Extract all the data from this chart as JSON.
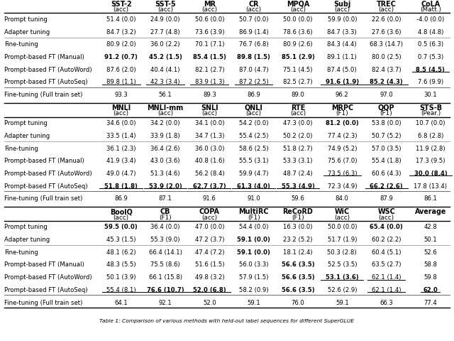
{
  "section1_header": [
    "SST-2\n(acc)",
    "SST-5\n(acc)",
    "MR\n(acc)",
    "CR\n(acc)",
    "MPQA\n(acc)",
    "Subj\n(acc)",
    "TREC\n(acc)",
    "CoLA\n(Matt.)"
  ],
  "section1_rows": [
    [
      "Prompt tuning",
      "51.4 (0.0)",
      "24.9 (0.0)",
      "50.6 (0.0)",
      "50.7 (0.0)",
      "50.0 (0.0)",
      "59.9 (0.0)",
      "22.6 (0.0)",
      "-4.0 (0.0)"
    ],
    [
      "Adapter tuning",
      "84.7 (3.2)",
      "27.7 (4.8)",
      "73.6 (3.9)",
      "86.9 (1.4)",
      "78.6 (3.6)",
      "84.7 (3.3)",
      "27.6 (3.6)",
      "4.8 (4.8)"
    ],
    [
      "Fine-tuning",
      "80.9 (2.0)",
      "36.0 (2.2)",
      "70.1 (7.1)",
      "76.7 (6.8)",
      "80.9 (2.6)",
      "84.3 (4.4)",
      "68.3 (14.7)",
      "0.5 (6.3)"
    ],
    [
      "Prompt-based FT (Manual)",
      "91.2 (0.7)",
      "45.2 (1.5)",
      "85.4 (1.5)",
      "89.8 (1.5)",
      "85.1 (2.9)",
      "89.1 (1.1)",
      "80.0 (2.5)",
      "0.7 (5.3)"
    ],
    [
      "Prompt-based FT (AutoWord)",
      "87.6 (2.0)",
      "40.4 (4.1)",
      "82.1 (2.7)",
      "87.0 (4.7)",
      "75.1 (4.5)",
      "87.4 (5.0)",
      "82.4 (3.7)",
      "8.5 (4.5)"
    ],
    [
      "Prompt-based FT (AutoSeq)",
      "89.8 (1.1)",
      "42.3 (3.4)",
      "83.9 (1.3)",
      "87.2 (2.5)",
      "82.5 (2.7)",
      "91.6 (1.9)",
      "85.2 (4.3)",
      "7.6 (9.9)"
    ],
    [
      "Fine-tuning (Full train set)",
      "93.3",
      "56.1",
      "89.3",
      "86.9",
      "89.0",
      "96.2",
      "97.0",
      "30.1"
    ]
  ],
  "section1_bold": [
    [
      false,
      false,
      false,
      false,
      false,
      false,
      false,
      false,
      false
    ],
    [
      false,
      false,
      false,
      false,
      false,
      false,
      false,
      false,
      false
    ],
    [
      false,
      false,
      false,
      false,
      false,
      false,
      false,
      false,
      false
    ],
    [
      false,
      true,
      true,
      true,
      true,
      true,
      false,
      false,
      false
    ],
    [
      false,
      false,
      false,
      false,
      false,
      false,
      false,
      false,
      true
    ],
    [
      false,
      false,
      false,
      false,
      false,
      false,
      true,
      true,
      false
    ],
    [
      false,
      false,
      false,
      false,
      false,
      false,
      false,
      false,
      false
    ]
  ],
  "section1_underline": [
    [
      false,
      false,
      false,
      false,
      false,
      false,
      false,
      false,
      false
    ],
    [
      false,
      false,
      false,
      false,
      false,
      false,
      false,
      false,
      false
    ],
    [
      false,
      false,
      false,
      false,
      false,
      false,
      false,
      false,
      false
    ],
    [
      false,
      false,
      false,
      false,
      false,
      false,
      false,
      false,
      false
    ],
    [
      false,
      false,
      false,
      false,
      false,
      false,
      false,
      false,
      true
    ],
    [
      false,
      true,
      true,
      true,
      true,
      false,
      true,
      true,
      false
    ],
    [
      false,
      false,
      false,
      false,
      false,
      false,
      false,
      false,
      false
    ]
  ],
  "section2_header": [
    "MNLI\n(acc)",
    "MNLI-mm\n(acc)",
    "SNLI\n(acc)",
    "QNLI\n(acc)",
    "RTE\n(acc)",
    "MRPC\n(F1)",
    "QQP\n(F1)",
    "STS-B\n(Pear.)"
  ],
  "section2_rows": [
    [
      "Prompt tuning",
      "34.6 (0.0)",
      "34.2 (0.0)",
      "34.1 (0.0)",
      "54.2 (0.0)",
      "47.3 (0.0)",
      "81.2 (0.0)",
      "53.8 (0.0)",
      "10.7 (0.0)"
    ],
    [
      "Adapter tuning",
      "33.5 (1.4)",
      "33.9 (1.8)",
      "34.7 (1.3)",
      "55.4 (2.5)",
      "50.2 (2.0)",
      "77.4 (2.3)",
      "50.7 (5.2)",
      "6.8 (2.8)"
    ],
    [
      "Fine-tuning",
      "36.1 (2.3)",
      "36.4 (2.6)",
      "36.0 (3.0)",
      "58.6 (2.5)",
      "51.8 (2.7)",
      "74.9 (5.2)",
      "57.0 (3.5)",
      "11.9 (2.8)"
    ],
    [
      "Prompt-based FT (Manual)",
      "41.9 (3.4)",
      "43.0 (3.6)",
      "40.8 (1.6)",
      "55.5 (3.1)",
      "53.3 (3.1)",
      "75.6 (7.0)",
      "55.4 (1.8)",
      "17.3 (9.5)"
    ],
    [
      "Prompt-based FT (AutoWord)",
      "49.0 (4.7)",
      "51.3 (4.6)",
      "56.2 (8.4)",
      "59.9 (4.7)",
      "48.7 (2.4)",
      "73.5 (6.3)",
      "60.6 (4.3)",
      "30.0 (8.4)"
    ],
    [
      "Prompt-based FT (AutoSeq)",
      "51.8 (1.8)",
      "53.9 (2.0)",
      "62.7 (3.7)",
      "61.3 (4.0)",
      "55.3 (4.9)",
      "72.3 (4.9)",
      "66.2 (2.6)",
      "17.8 (13.4)"
    ],
    [
      "Fine-tuning (Full train set)",
      "86.9",
      "87.1",
      "91.6",
      "91.0",
      "59.6",
      "84.0",
      "87.9",
      "86.1"
    ]
  ],
  "section2_bold": [
    [
      false,
      false,
      false,
      false,
      false,
      false,
      true,
      false,
      false
    ],
    [
      false,
      false,
      false,
      false,
      false,
      false,
      false,
      false,
      false
    ],
    [
      false,
      false,
      false,
      false,
      false,
      false,
      false,
      false,
      false
    ],
    [
      false,
      false,
      false,
      false,
      false,
      false,
      false,
      false,
      false
    ],
    [
      false,
      false,
      false,
      false,
      false,
      false,
      false,
      false,
      true
    ],
    [
      false,
      true,
      true,
      true,
      true,
      true,
      false,
      true,
      false
    ],
    [
      false,
      false,
      false,
      false,
      false,
      false,
      false,
      false,
      false
    ]
  ],
  "section2_underline": [
    [
      false,
      false,
      false,
      false,
      false,
      false,
      false,
      false,
      false
    ],
    [
      false,
      false,
      false,
      false,
      false,
      false,
      false,
      false,
      false
    ],
    [
      false,
      false,
      false,
      false,
      false,
      false,
      false,
      false,
      false
    ],
    [
      false,
      false,
      false,
      false,
      false,
      false,
      false,
      false,
      false
    ],
    [
      false,
      false,
      false,
      false,
      false,
      false,
      true,
      false,
      true
    ],
    [
      false,
      true,
      true,
      true,
      true,
      true,
      false,
      true,
      false
    ],
    [
      false,
      false,
      false,
      false,
      false,
      false,
      false,
      false,
      false
    ]
  ],
  "section3_header": [
    "BoolQ\n(acc)",
    "CB\n(F1)",
    "COPA\n(acc)",
    "MultiRC\n(F1)",
    "ReCoRD\n(F1)",
    "WiC\n(acc)",
    "WSC\n(acc)",
    "Average"
  ],
  "section3_rows": [
    [
      "Prompt tuning",
      "59.5 (0.0)",
      "36.4 (0.0)",
      "47.0 (0.0)",
      "54.4 (0.0)",
      "16.3 (0.0)",
      "50.0 (0.0)",
      "65.4 (0.0)",
      "42.8"
    ],
    [
      "Adapter tuning",
      "45.3 (1.5)",
      "55.3 (9.0)",
      "47.2 (3.7)",
      "59.1 (0.0)",
      "23.2 (5.2)",
      "51.7 (1.9)",
      "60.2 (2.2)",
      "50.1"
    ],
    [
      "Fine-tuning",
      "48.1 (6.2)",
      "66.4 (14.1)",
      "47.4 (7.2)",
      "59.1 (0.0)",
      "18.1 (2.4)",
      "50.3 (2.8)",
      "60.4 (5.1)",
      "52.6"
    ],
    [
      "Prompt-based FT (Manual)",
      "48.3 (5.5)",
      "75.5 (8.6)",
      "51.6 (1.5)",
      "56.0 (3.3)",
      "56.6 (3.5)",
      "52.5 (3.5)",
      "63.5 (2.7)",
      "58.8"
    ],
    [
      "Prompt-based FT (AutoWord)",
      "50.1 (3.9)",
      "66.1 (15.8)",
      "49.8 (3.2)",
      "57.9 (1.5)",
      "56.6 (3.5)",
      "53.1 (3.6)",
      "62.1 (1.4)",
      "59.8"
    ],
    [
      "Prompt-based FT (AutoSeq)",
      "55.4 (8.1)",
      "76.6 (10.7)",
      "52.0 (6.8)",
      "58.2 (0.9)",
      "56.6 (3.5)",
      "52.6 (2.9)",
      "62.1 (1.4)",
      "62.0"
    ],
    [
      "Fine-tuning (Full train set)",
      "64.1",
      "92.1",
      "52.0",
      "59.1",
      "76.0",
      "59.1",
      "66.3",
      "77.4"
    ]
  ],
  "section3_bold": [
    [
      false,
      true,
      false,
      false,
      false,
      false,
      false,
      true,
      false
    ],
    [
      false,
      false,
      false,
      false,
      true,
      false,
      false,
      false,
      false
    ],
    [
      false,
      false,
      false,
      false,
      true,
      false,
      false,
      false,
      false
    ],
    [
      false,
      false,
      false,
      false,
      false,
      true,
      false,
      false,
      false
    ],
    [
      false,
      false,
      false,
      false,
      false,
      true,
      true,
      false,
      false
    ],
    [
      false,
      false,
      true,
      true,
      false,
      true,
      false,
      false,
      true
    ],
    [
      false,
      false,
      false,
      false,
      false,
      false,
      false,
      false,
      false
    ]
  ],
  "section3_underline": [
    [
      false,
      false,
      false,
      false,
      false,
      false,
      false,
      false,
      false
    ],
    [
      false,
      false,
      false,
      false,
      false,
      false,
      false,
      false,
      false
    ],
    [
      false,
      false,
      false,
      false,
      false,
      false,
      false,
      false,
      false
    ],
    [
      false,
      false,
      false,
      false,
      false,
      false,
      false,
      false,
      false
    ],
    [
      false,
      false,
      false,
      false,
      false,
      false,
      true,
      true,
      false
    ],
    [
      false,
      true,
      true,
      true,
      false,
      false,
      false,
      true,
      true
    ],
    [
      false,
      false,
      false,
      false,
      false,
      false,
      false,
      false,
      false
    ]
  ],
  "caption": "Table 1: Comparison of various methods with held-out label sequences for different SuperGLUE",
  "bg_color": "#ffffff"
}
